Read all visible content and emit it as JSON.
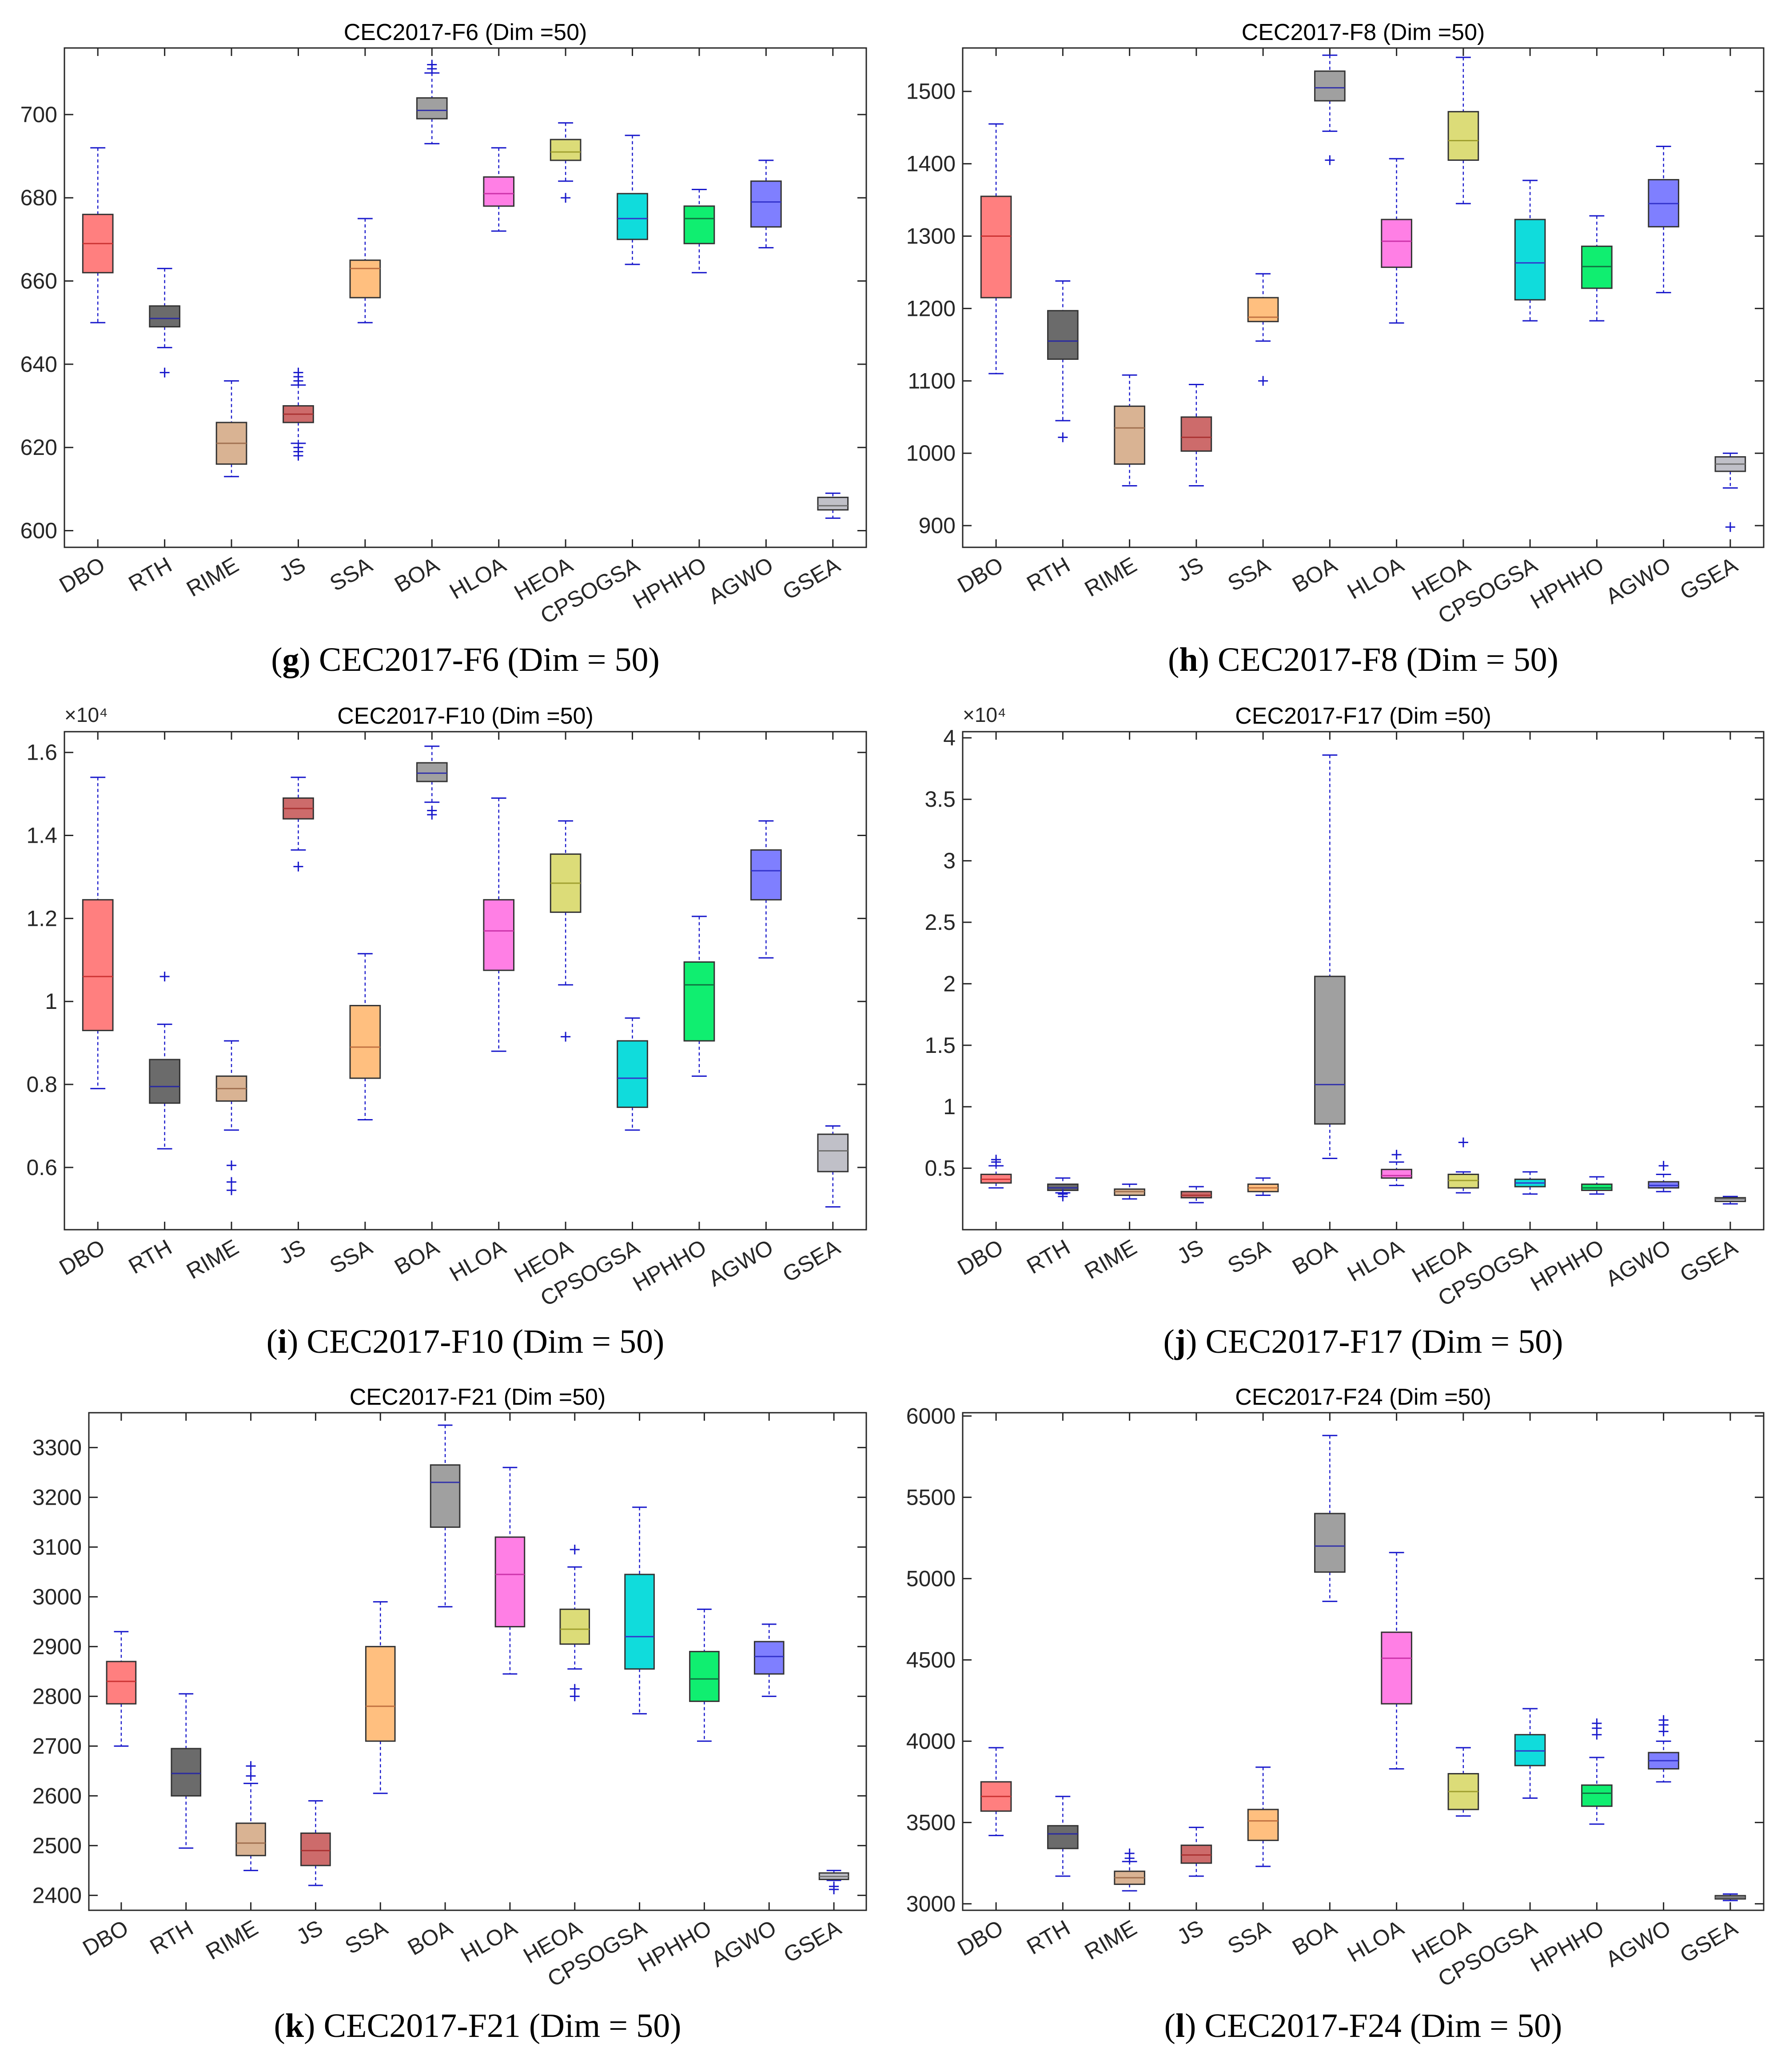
{
  "figure": {
    "algorithms": [
      "DBO",
      "RTH",
      "RIME",
      "JS",
      "SSA",
      "BOA",
      "HLOA",
      "HEOA",
      "CPSOGSA",
      "HPHHO",
      "AGWO",
      "GSEA"
    ],
    "colors": [
      "#ff7f7f",
      "#6b6b6b",
      "#d9b393",
      "#cd6b6b",
      "#ffbf7f",
      "#a0a0a0",
      "#ff7fe5",
      "#dcdc78",
      "#10dcdc",
      "#10ee70",
      "#7f7fff",
      "#c0c0c8"
    ],
    "median_line_colors": [
      "#cc3333",
      "#2a2aa0",
      "#a07050",
      "#aa3333",
      "#c07040",
      "#3333aa",
      "#cc33aa",
      "#a0a030",
      "#3333cc",
      "#107040",
      "#3333cc",
      "#707070"
    ],
    "whisker_color": "#1a1acc"
  },
  "chart_data": [
    {
      "type": "box",
      "panel": "g",
      "title": "CEC2017-F6 (Dim =50)",
      "caption_label": "g",
      "caption_text": " CEC2017-F6 (Dim = 50)",
      "ylim": [
        596,
        716
      ],
      "yticks": [
        600,
        620,
        640,
        660,
        680,
        700
      ],
      "ytick_labels": [
        "600",
        "620",
        "640",
        "660",
        "680",
        "700"
      ],
      "exponent_label": "",
      "boxes": [
        {
          "min": 650,
          "q1": 662,
          "median": 669,
          "q3": 676,
          "max": 692,
          "outliers": []
        },
        {
          "min": 644,
          "q1": 649,
          "median": 651,
          "q3": 654,
          "max": 663,
          "outliers": [
            638
          ]
        },
        {
          "min": 613,
          "q1": 616,
          "median": 621,
          "q3": 626,
          "max": 636,
          "outliers": []
        },
        {
          "min": 621,
          "q1": 626,
          "median": 628,
          "q3": 630,
          "max": 635,
          "outliers": [
            618,
            619,
            620,
            636,
            637,
            638
          ]
        },
        {
          "min": 650,
          "q1": 656,
          "median": 663,
          "q3": 665,
          "max": 675,
          "outliers": []
        },
        {
          "min": 693,
          "q1": 699,
          "median": 701,
          "q3": 704,
          "max": 710,
          "outliers": [
            711,
            712
          ]
        },
        {
          "min": 672,
          "q1": 678,
          "median": 681,
          "q3": 685,
          "max": 692,
          "outliers": []
        },
        {
          "min": 684,
          "q1": 689,
          "median": 691,
          "q3": 694,
          "max": 698,
          "outliers": [
            680
          ]
        },
        {
          "min": 664,
          "q1": 670,
          "median": 675,
          "q3": 681,
          "max": 695,
          "outliers": []
        },
        {
          "min": 662,
          "q1": 669,
          "median": 675,
          "q3": 678,
          "max": 682,
          "outliers": []
        },
        {
          "min": 668,
          "q1": 673,
          "median": 679,
          "q3": 684,
          "max": 689,
          "outliers": []
        },
        {
          "min": 603,
          "q1": 605,
          "median": 606,
          "q3": 608,
          "max": 609,
          "outliers": []
        }
      ]
    },
    {
      "type": "box",
      "panel": "h",
      "title": "CEC2017-F8 (Dim =50)",
      "caption_label": "h",
      "caption_text": " CEC2017-F8 (Dim = 50)",
      "ylim": [
        870,
        1560
      ],
      "yticks": [
        900,
        1000,
        1100,
        1200,
        1300,
        1400,
        1500
      ],
      "ytick_labels": [
        "900",
        "1000",
        "1100",
        "1200",
        "1300",
        "1400",
        "1500"
      ],
      "exponent_label": "",
      "boxes": [
        {
          "min": 1110,
          "q1": 1215,
          "median": 1300,
          "q3": 1355,
          "max": 1455,
          "outliers": []
        },
        {
          "min": 1045,
          "q1": 1130,
          "median": 1155,
          "q3": 1197,
          "max": 1238,
          "outliers": [
            1022
          ]
        },
        {
          "min": 955,
          "q1": 985,
          "median": 1035,
          "q3": 1065,
          "max": 1108,
          "outliers": []
        },
        {
          "min": 955,
          "q1": 1003,
          "median": 1022,
          "q3": 1050,
          "max": 1095,
          "outliers": []
        },
        {
          "min": 1155,
          "q1": 1182,
          "median": 1188,
          "q3": 1215,
          "max": 1248,
          "outliers": [
            1100
          ]
        },
        {
          "min": 1445,
          "q1": 1487,
          "median": 1505,
          "q3": 1528,
          "max": 1550,
          "outliers": [
            1405
          ]
        },
        {
          "min": 1180,
          "q1": 1257,
          "median": 1293,
          "q3": 1323,
          "max": 1407,
          "outliers": []
        },
        {
          "min": 1345,
          "q1": 1405,
          "median": 1432,
          "q3": 1472,
          "max": 1547,
          "outliers": []
        },
        {
          "min": 1183,
          "q1": 1212,
          "median": 1263,
          "q3": 1323,
          "max": 1377,
          "outliers": []
        },
        {
          "min": 1183,
          "q1": 1228,
          "median": 1258,
          "q3": 1286,
          "max": 1328,
          "outliers": []
        },
        {
          "min": 1222,
          "q1": 1313,
          "median": 1345,
          "q3": 1378,
          "max": 1424,
          "outliers": []
        },
        {
          "min": 952,
          "q1": 975,
          "median": 985,
          "q3": 995,
          "max": 1000,
          "outliers": [
            898
          ]
        }
      ]
    },
    {
      "type": "box",
      "panel": "i",
      "title": "CEC2017-F10 (Dim =50)",
      "caption_label": "i",
      "caption_text": " CEC2017-F10 (Dim = 50)",
      "ylim": [
        0.45,
        1.65
      ],
      "yticks": [
        0.6,
        0.8,
        1,
        1.2,
        1.4,
        1.6
      ],
      "ytick_labels": [
        "0.6",
        "0.8",
        "1",
        "1.2",
        "1.4",
        "1.6"
      ],
      "exponent_label": "×10⁴",
      "boxes": [
        {
          "min": 0.79,
          "q1": 0.93,
          "median": 1.06,
          "q3": 1.245,
          "max": 1.54,
          "outliers": []
        },
        {
          "min": 0.645,
          "q1": 0.755,
          "median": 0.795,
          "q3": 0.86,
          "max": 0.945,
          "outliers": [
            1.06
          ]
        },
        {
          "min": 0.69,
          "q1": 0.76,
          "median": 0.79,
          "q3": 0.82,
          "max": 0.905,
          "outliers": [
            0.545,
            0.565,
            0.605
          ]
        },
        {
          "min": 1.365,
          "q1": 1.44,
          "median": 1.465,
          "q3": 1.49,
          "max": 1.54,
          "outliers": [
            1.325
          ]
        },
        {
          "min": 0.715,
          "q1": 0.815,
          "median": 0.89,
          "q3": 0.99,
          "max": 1.115,
          "outliers": []
        },
        {
          "min": 1.48,
          "q1": 1.53,
          "median": 1.55,
          "q3": 1.575,
          "max": 1.615,
          "outliers": [
            1.45,
            1.46
          ]
        },
        {
          "min": 0.88,
          "q1": 1.075,
          "median": 1.17,
          "q3": 1.245,
          "max": 1.49,
          "outliers": []
        },
        {
          "min": 1.04,
          "q1": 1.215,
          "median": 1.285,
          "q3": 1.355,
          "max": 1.435,
          "outliers": [
            0.915
          ]
        },
        {
          "min": 0.69,
          "q1": 0.745,
          "median": 0.815,
          "q3": 0.905,
          "max": 0.96,
          "outliers": []
        },
        {
          "min": 0.82,
          "q1": 0.905,
          "median": 1.04,
          "q3": 1.095,
          "max": 1.205,
          "outliers": []
        },
        {
          "min": 1.105,
          "q1": 1.245,
          "median": 1.315,
          "q3": 1.365,
          "max": 1.435,
          "outliers": []
        },
        {
          "min": 0.505,
          "q1": 0.59,
          "median": 0.64,
          "q3": 0.68,
          "max": 0.7,
          "outliers": []
        }
      ]
    },
    {
      "type": "box",
      "panel": "j",
      "title": "CEC2017-F17 (Dim =50)",
      "caption_label": "j",
      "caption_text": " CEC2017-F17 (Dim = 50)",
      "ylim": [
        0,
        4.05
      ],
      "yticks": [
        0.5,
        1,
        1.5,
        2,
        2.5,
        3,
        3.5,
        4
      ],
      "ytick_labels": [
        "0.5",
        "1",
        "1.5",
        "2",
        "2.5",
        "3",
        "3.5",
        "4"
      ],
      "exponent_label": "×10⁴",
      "boxes": [
        {
          "min": 0.34,
          "q1": 0.38,
          "median": 0.41,
          "q3": 0.45,
          "max": 0.52,
          "outliers": [
            0.55,
            0.57
          ]
        },
        {
          "min": 0.3,
          "q1": 0.32,
          "median": 0.34,
          "q3": 0.37,
          "max": 0.42,
          "outliers": [
            0.27,
            0.29
          ]
        },
        {
          "min": 0.25,
          "q1": 0.28,
          "median": 0.31,
          "q3": 0.33,
          "max": 0.37,
          "outliers": []
        },
        {
          "min": 0.22,
          "q1": 0.26,
          "median": 0.28,
          "q3": 0.31,
          "max": 0.35,
          "outliers": []
        },
        {
          "min": 0.28,
          "q1": 0.31,
          "median": 0.34,
          "q3": 0.37,
          "max": 0.42,
          "outliers": []
        },
        {
          "min": 0.58,
          "q1": 0.86,
          "median": 1.18,
          "q3": 2.06,
          "max": 3.86,
          "outliers": []
        },
        {
          "min": 0.36,
          "q1": 0.42,
          "median": 0.44,
          "q3": 0.49,
          "max": 0.55,
          "outliers": [
            0.61
          ]
        },
        {
          "min": 0.3,
          "q1": 0.34,
          "median": 0.4,
          "q3": 0.45,
          "max": 0.47,
          "outliers": [
            0.71
          ]
        },
        {
          "min": 0.29,
          "q1": 0.35,
          "median": 0.38,
          "q3": 0.41,
          "max": 0.47,
          "outliers": []
        },
        {
          "min": 0.29,
          "q1": 0.32,
          "median": 0.34,
          "q3": 0.37,
          "max": 0.43,
          "outliers": []
        },
        {
          "min": 0.31,
          "q1": 0.34,
          "median": 0.36,
          "q3": 0.39,
          "max": 0.45,
          "outliers": [
            0.52
          ]
        },
        {
          "min": 0.21,
          "q1": 0.23,
          "median": 0.25,
          "q3": 0.26,
          "max": 0.27,
          "outliers": []
        }
      ]
    },
    {
      "type": "box",
      "panel": "k",
      "title": "CEC2017-F21 (Dim =50)",
      "caption_label": "k",
      "caption_text": " CEC2017-F21 (Dim = 50)",
      "ylim": [
        2370,
        3370
      ],
      "yticks": [
        2400,
        2500,
        2600,
        2700,
        2800,
        2900,
        3000,
        3100,
        3200,
        3300
      ],
      "ytick_labels": [
        "2400",
        "2500",
        "2600",
        "2700",
        "2800",
        "2900",
        "3000",
        "3100",
        "3200",
        "3300"
      ],
      "exponent_label": "",
      "boxes": [
        {
          "min": 2700,
          "q1": 2785,
          "median": 2830,
          "q3": 2870,
          "max": 2930,
          "outliers": []
        },
        {
          "min": 2495,
          "q1": 2600,
          "median": 2645,
          "q3": 2695,
          "max": 2805,
          "outliers": []
        },
        {
          "min": 2450,
          "q1": 2480,
          "median": 2505,
          "q3": 2545,
          "max": 2625,
          "outliers": [
            2640,
            2660
          ]
        },
        {
          "min": 2420,
          "q1": 2460,
          "median": 2490,
          "q3": 2525,
          "max": 2590,
          "outliers": []
        },
        {
          "min": 2605,
          "q1": 2710,
          "median": 2780,
          "q3": 2900,
          "max": 2990,
          "outliers": []
        },
        {
          "min": 2980,
          "q1": 3140,
          "median": 3230,
          "q3": 3265,
          "max": 3345,
          "outliers": []
        },
        {
          "min": 2845,
          "q1": 2940,
          "median": 3045,
          "q3": 3120,
          "max": 3260,
          "outliers": []
        },
        {
          "min": 2855,
          "q1": 2905,
          "median": 2935,
          "q3": 2975,
          "max": 3060,
          "outliers": [
            2800,
            2815,
            3095
          ]
        },
        {
          "min": 2765,
          "q1": 2855,
          "median": 2920,
          "q3": 3045,
          "max": 3180,
          "outliers": []
        },
        {
          "min": 2710,
          "q1": 2790,
          "median": 2835,
          "q3": 2890,
          "max": 2975,
          "outliers": []
        },
        {
          "min": 2800,
          "q1": 2845,
          "median": 2880,
          "q3": 2910,
          "max": 2945,
          "outliers": []
        },
        {
          "min": 2430,
          "q1": 2432,
          "median": 2438,
          "q3": 2445,
          "max": 2450,
          "outliers": [
            2412,
            2418
          ]
        }
      ]
    },
    {
      "type": "box",
      "panel": "l",
      "title": "CEC2017-F24 (Dim =50)",
      "caption_label": "l",
      "caption_text": " CEC2017-F24 (Dim = 50)",
      "ylim": [
        2960,
        6020
      ],
      "yticks": [
        3000,
        3500,
        4000,
        4500,
        5000,
        5500,
        6000
      ],
      "ytick_labels": [
        "3000",
        "3500",
        "4000",
        "4500",
        "5000",
        "5500",
        "6000"
      ],
      "exponent_label": "",
      "boxes": [
        {
          "min": 3420,
          "q1": 3570,
          "median": 3660,
          "q3": 3750,
          "max": 3960,
          "outliers": []
        },
        {
          "min": 3170,
          "q1": 3340,
          "median": 3430,
          "q3": 3480,
          "max": 3660,
          "outliers": []
        },
        {
          "min": 3080,
          "q1": 3120,
          "median": 3160,
          "q3": 3200,
          "max": 3260,
          "outliers": [
            3280,
            3310
          ]
        },
        {
          "min": 3170,
          "q1": 3250,
          "median": 3300,
          "q3": 3360,
          "max": 3470,
          "outliers": []
        },
        {
          "min": 3230,
          "q1": 3390,
          "median": 3510,
          "q3": 3580,
          "max": 3840,
          "outliers": []
        },
        {
          "min": 4860,
          "q1": 5040,
          "median": 5200,
          "q3": 5400,
          "max": 5880,
          "outliers": []
        },
        {
          "min": 3830,
          "q1": 4230,
          "median": 4510,
          "q3": 4670,
          "max": 5160,
          "outliers": []
        },
        {
          "min": 3540,
          "q1": 3580,
          "median": 3690,
          "q3": 3800,
          "max": 3960,
          "outliers": []
        },
        {
          "min": 3650,
          "q1": 3850,
          "median": 3940,
          "q3": 4040,
          "max": 4200,
          "outliers": []
        },
        {
          "min": 3490,
          "q1": 3600,
          "median": 3680,
          "q3": 3730,
          "max": 3900,
          "outliers": [
            4040,
            4080,
            4110
          ]
        },
        {
          "min": 3750,
          "q1": 3830,
          "median": 3880,
          "q3": 3930,
          "max": 4000,
          "outliers": [
            4060,
            4100,
            4130
          ]
        },
        {
          "min": 3020,
          "q1": 3030,
          "median": 3040,
          "q3": 3050,
          "max": 3060,
          "outliers": []
        }
      ]
    }
  ]
}
